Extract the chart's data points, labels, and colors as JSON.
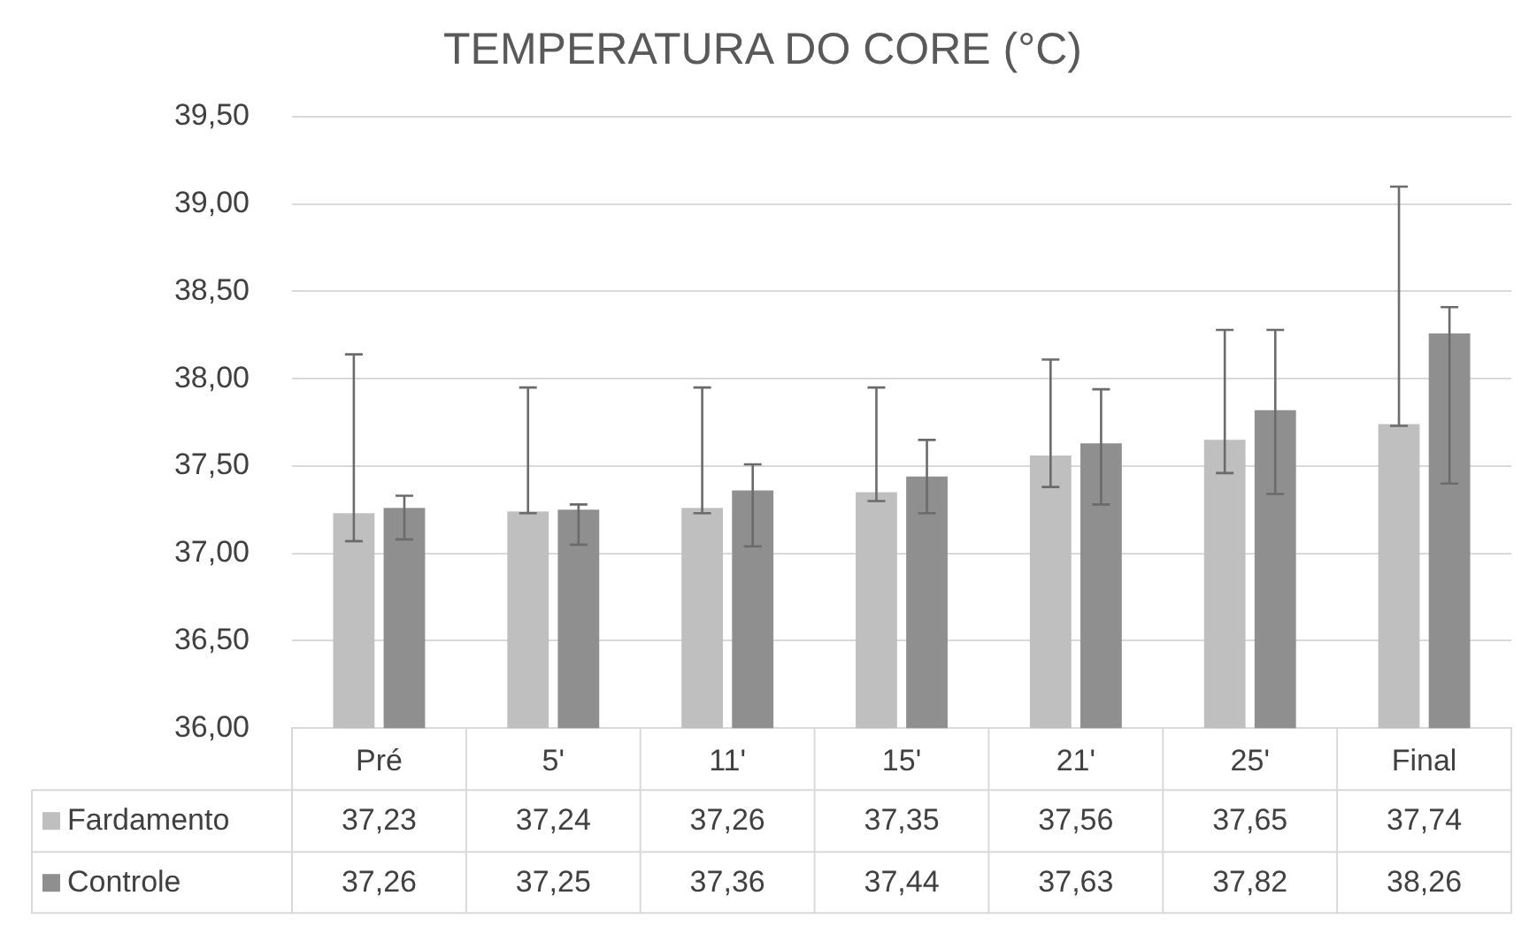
{
  "chart_data": {
    "type": "bar",
    "title": "TEMPERATURA DO CORE (°C)",
    "categories": [
      "Pré",
      "5'",
      "11'",
      "15'",
      "21'",
      "25'",
      "Final"
    ],
    "series": [
      {
        "name": "Fardamento",
        "color": "#bfbfbf",
        "values": [
          37.23,
          37.24,
          37.26,
          37.35,
          37.56,
          37.65,
          37.74
        ],
        "value_labels": [
          "37,23",
          "37,24",
          "37,26",
          "37,35",
          "37,56",
          "37,65",
          "37,74"
        ],
        "errors": [
          [
            37.07,
            38.14
          ],
          [
            37.23,
            37.95
          ],
          [
            37.23,
            37.95
          ],
          [
            37.3,
            37.95
          ],
          [
            37.38,
            38.11
          ],
          [
            37.46,
            38.28
          ],
          [
            37.73,
            39.1
          ]
        ]
      },
      {
        "name": "Controle",
        "color": "#8f8f8f",
        "values": [
          37.26,
          37.25,
          37.36,
          37.44,
          37.63,
          37.82,
          38.26
        ],
        "value_labels": [
          "37,26",
          "37,25",
          "37,36",
          "37,44",
          "37,63",
          "37,82",
          "38,26"
        ],
        "errors": [
          [
            37.08,
            37.33
          ],
          [
            37.05,
            37.28
          ],
          [
            37.04,
            37.51
          ],
          [
            37.23,
            37.65
          ],
          [
            37.28,
            37.94
          ],
          [
            37.34,
            38.28
          ],
          [
            37.4,
            38.41
          ]
        ]
      }
    ],
    "ylim": [
      36,
      39.5
    ],
    "yticks": [
      {
        "value": 36,
        "label": "36,00"
      },
      {
        "value": 36.5,
        "label": "36,50"
      },
      {
        "value": 37,
        "label": "37,00"
      },
      {
        "value": 37.5,
        "label": "37,50"
      },
      {
        "value": 38,
        "label": "38,00"
      },
      {
        "value": 38.5,
        "label": "38,50"
      },
      {
        "value": 39,
        "label": "39,00"
      },
      {
        "value": 39.5,
        "label": "39,50"
      }
    ],
    "grid": "y",
    "legend": "bottom"
  }
}
